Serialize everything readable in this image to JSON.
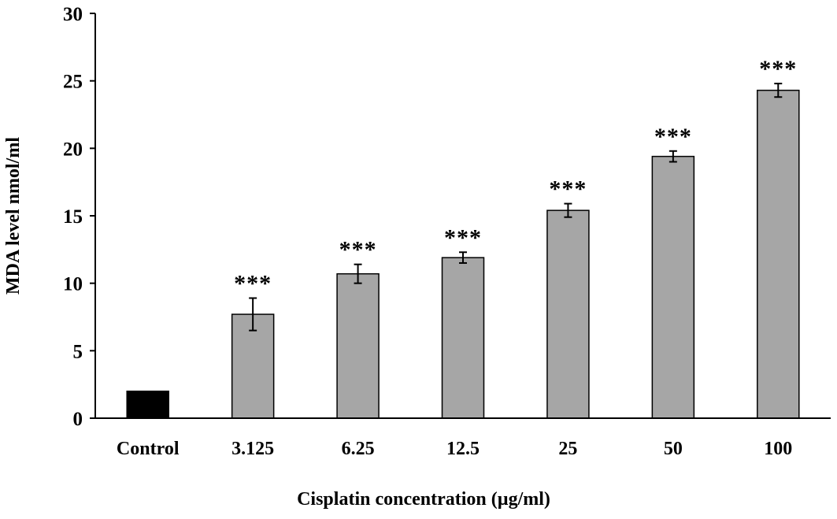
{
  "chart_data": {
    "type": "bar",
    "title": "",
    "xlabel": "Cisplatin concentration (µg/ml)",
    "ylabel": "MDA level nmol/ml",
    "ylim": [
      0,
      30
    ],
    "yticks": [
      0,
      5,
      10,
      15,
      20,
      25,
      30
    ],
    "categories": [
      "Control",
      "3.125",
      "6.25",
      "12.5",
      "25",
      "50",
      "100"
    ],
    "values": [
      2.0,
      7.7,
      10.7,
      11.9,
      15.4,
      19.4,
      24.3
    ],
    "errors": [
      0.0,
      1.2,
      0.7,
      0.4,
      0.5,
      0.4,
      0.5
    ],
    "significance": [
      "",
      "***",
      "***",
      "***",
      "***",
      "***",
      "***"
    ],
    "bar_colors": [
      "#000000",
      "#a6a6a6",
      "#a6a6a6",
      "#a6a6a6",
      "#a6a6a6",
      "#a6a6a6",
      "#a6a6a6"
    ],
    "grid": false,
    "legend": "none"
  }
}
